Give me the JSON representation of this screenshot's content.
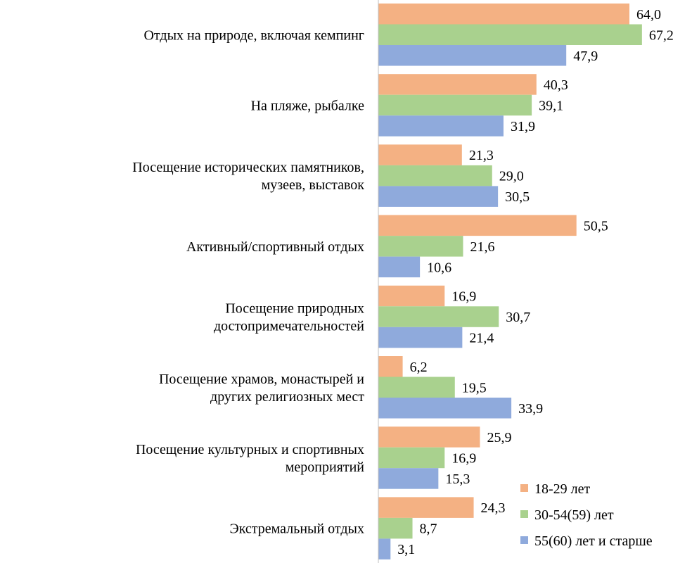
{
  "chart_data": {
    "type": "bar",
    "orientation": "horizontal",
    "categories": [
      [
        "Отдых на природе, включая кемпинг"
      ],
      [
        "На пляже, рыбалке"
      ],
      [
        "Посещение исторических памятников,",
        "музеев, выставок"
      ],
      [
        "Активный/спортивный отдых"
      ],
      [
        "Посещение природных",
        "достопримечательностей"
      ],
      [
        "Посещение храмов, монастырей и",
        "других религиозных мест"
      ],
      [
        "Посещение культурных и спортивных",
        "мероприятий"
      ],
      [
        "Экстремальный отдых"
      ]
    ],
    "series": [
      {
        "name": "18-29 лет",
        "color": "#F4B183",
        "values": [
          64.0,
          40.3,
          21.3,
          50.5,
          16.9,
          6.2,
          25.9,
          24.3
        ],
        "labels": [
          "64,0",
          "40,3",
          "21,3",
          "50,5",
          "16,9",
          "6,2",
          "25,9",
          "24,3"
        ]
      },
      {
        "name": "30-54(59)  лет",
        "color": "#A9D18E",
        "values": [
          67.2,
          39.1,
          29.0,
          21.6,
          30.7,
          19.5,
          16.9,
          8.7
        ],
        "labels": [
          "67,2",
          "39,1",
          "29,0",
          "21,6",
          "30,7",
          "19,5",
          "16,9",
          "8,7"
        ]
      },
      {
        "name": "55(60)  лет и старше",
        "color": "#8FAADC",
        "values": [
          47.9,
          31.9,
          30.5,
          10.6,
          21.4,
          33.9,
          15.3,
          3.1
        ],
        "labels": [
          "47,9",
          "31,9",
          "30,5",
          "10,6",
          "21,4",
          "33,9",
          "15,3",
          "3,1"
        ]
      }
    ],
    "xlim": [
      0,
      80
    ],
    "grid": false,
    "legend_position": "bottom-right",
    "axis_color": "#BFBFBF"
  }
}
